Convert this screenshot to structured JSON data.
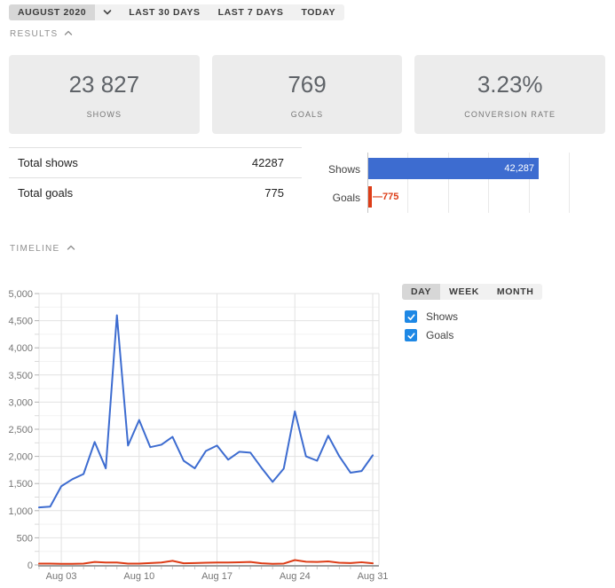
{
  "toolbar": {
    "period_label": "AUGUST 2020",
    "buttons": [
      {
        "label": "LAST 30 DAYS"
      },
      {
        "label": "LAST 7 DAYS"
      },
      {
        "label": "TODAY"
      }
    ]
  },
  "sections": {
    "results": {
      "label": "RESULTS",
      "collapse_icon": "chevron-up-icon"
    },
    "timeline": {
      "label": "TIMELINE",
      "collapse_icon": "chevron-up-icon"
    }
  },
  "cards": [
    {
      "value": "23 827",
      "label": "SHOWS"
    },
    {
      "value": "769",
      "label": "GOALS"
    },
    {
      "value": "3.23%",
      "label": "CONVERSION RATE"
    }
  ],
  "summary_table": {
    "rows": [
      {
        "label": "Total shows",
        "value": "42287"
      },
      {
        "label": "Total goals",
        "value": "775"
      }
    ]
  },
  "colors": {
    "shows": "#3d6cd0",
    "goals": "#dd3d17",
    "checkbox": "#1e88e5",
    "grid_major": "#e2e2e2",
    "grid_minor": "#f2f2f2",
    "axis": "#9e9e9e",
    "tick_text": "#757575"
  },
  "timeline_controls": {
    "tabs": [
      {
        "label": "DAY",
        "selected": true
      },
      {
        "label": "WEEK",
        "selected": false
      },
      {
        "label": "MONTH",
        "selected": false
      }
    ],
    "checkboxes": [
      {
        "label": "Shows",
        "checked": true
      },
      {
        "label": "Goals",
        "checked": true
      }
    ]
  },
  "chart_data": [
    {
      "type": "bar",
      "orientation": "horizontal",
      "categories": [
        "Shows",
        "Goals"
      ],
      "values": [
        42287,
        775
      ],
      "rows": [
        {
          "label": "Shows",
          "value": 42287,
          "value_label": "42,287",
          "label_inside": true
        },
        {
          "label": "Goals",
          "value": 775,
          "value_label": "—775",
          "label_inside": false
        }
      ],
      "xlim": [
        0,
        50000
      ],
      "gridline_step": 10000,
      "legend_position": "none"
    },
    {
      "type": "line",
      "title": "Timeline",
      "x_range": [
        "Aug 01",
        "Aug 31"
      ],
      "x_step": "1 day",
      "x_tick_days": [
        3,
        10,
        17,
        24,
        31
      ],
      "x_tick_labels": [
        "Aug 03",
        "Aug 10",
        "Aug 17",
        "Aug 24",
        "Aug 31"
      ],
      "ylim": [
        0,
        5000
      ],
      "y_tick_step": 500,
      "y_minor_gridline_step": 250,
      "grid": true,
      "series": [
        {
          "name": "Shows",
          "values": [
            1060,
            1075,
            1450,
            1580,
            1675,
            2265,
            1780,
            4600,
            2200,
            2670,
            2170,
            2215,
            2360,
            1920,
            1780,
            2100,
            2200,
            1940,
            2085,
            2070,
            1790,
            1530,
            1775,
            2830,
            2000,
            1920,
            2380,
            2000,
            1700,
            1730,
            2020
          ]
        },
        {
          "name": "Goals",
          "values": [
            25,
            25,
            20,
            20,
            25,
            55,
            45,
            45,
            25,
            25,
            35,
            45,
            75,
            30,
            35,
            40,
            45,
            45,
            50,
            55,
            30,
            20,
            25,
            90,
            60,
            55,
            65,
            40,
            35,
            50,
            30
          ]
        }
      ]
    }
  ]
}
